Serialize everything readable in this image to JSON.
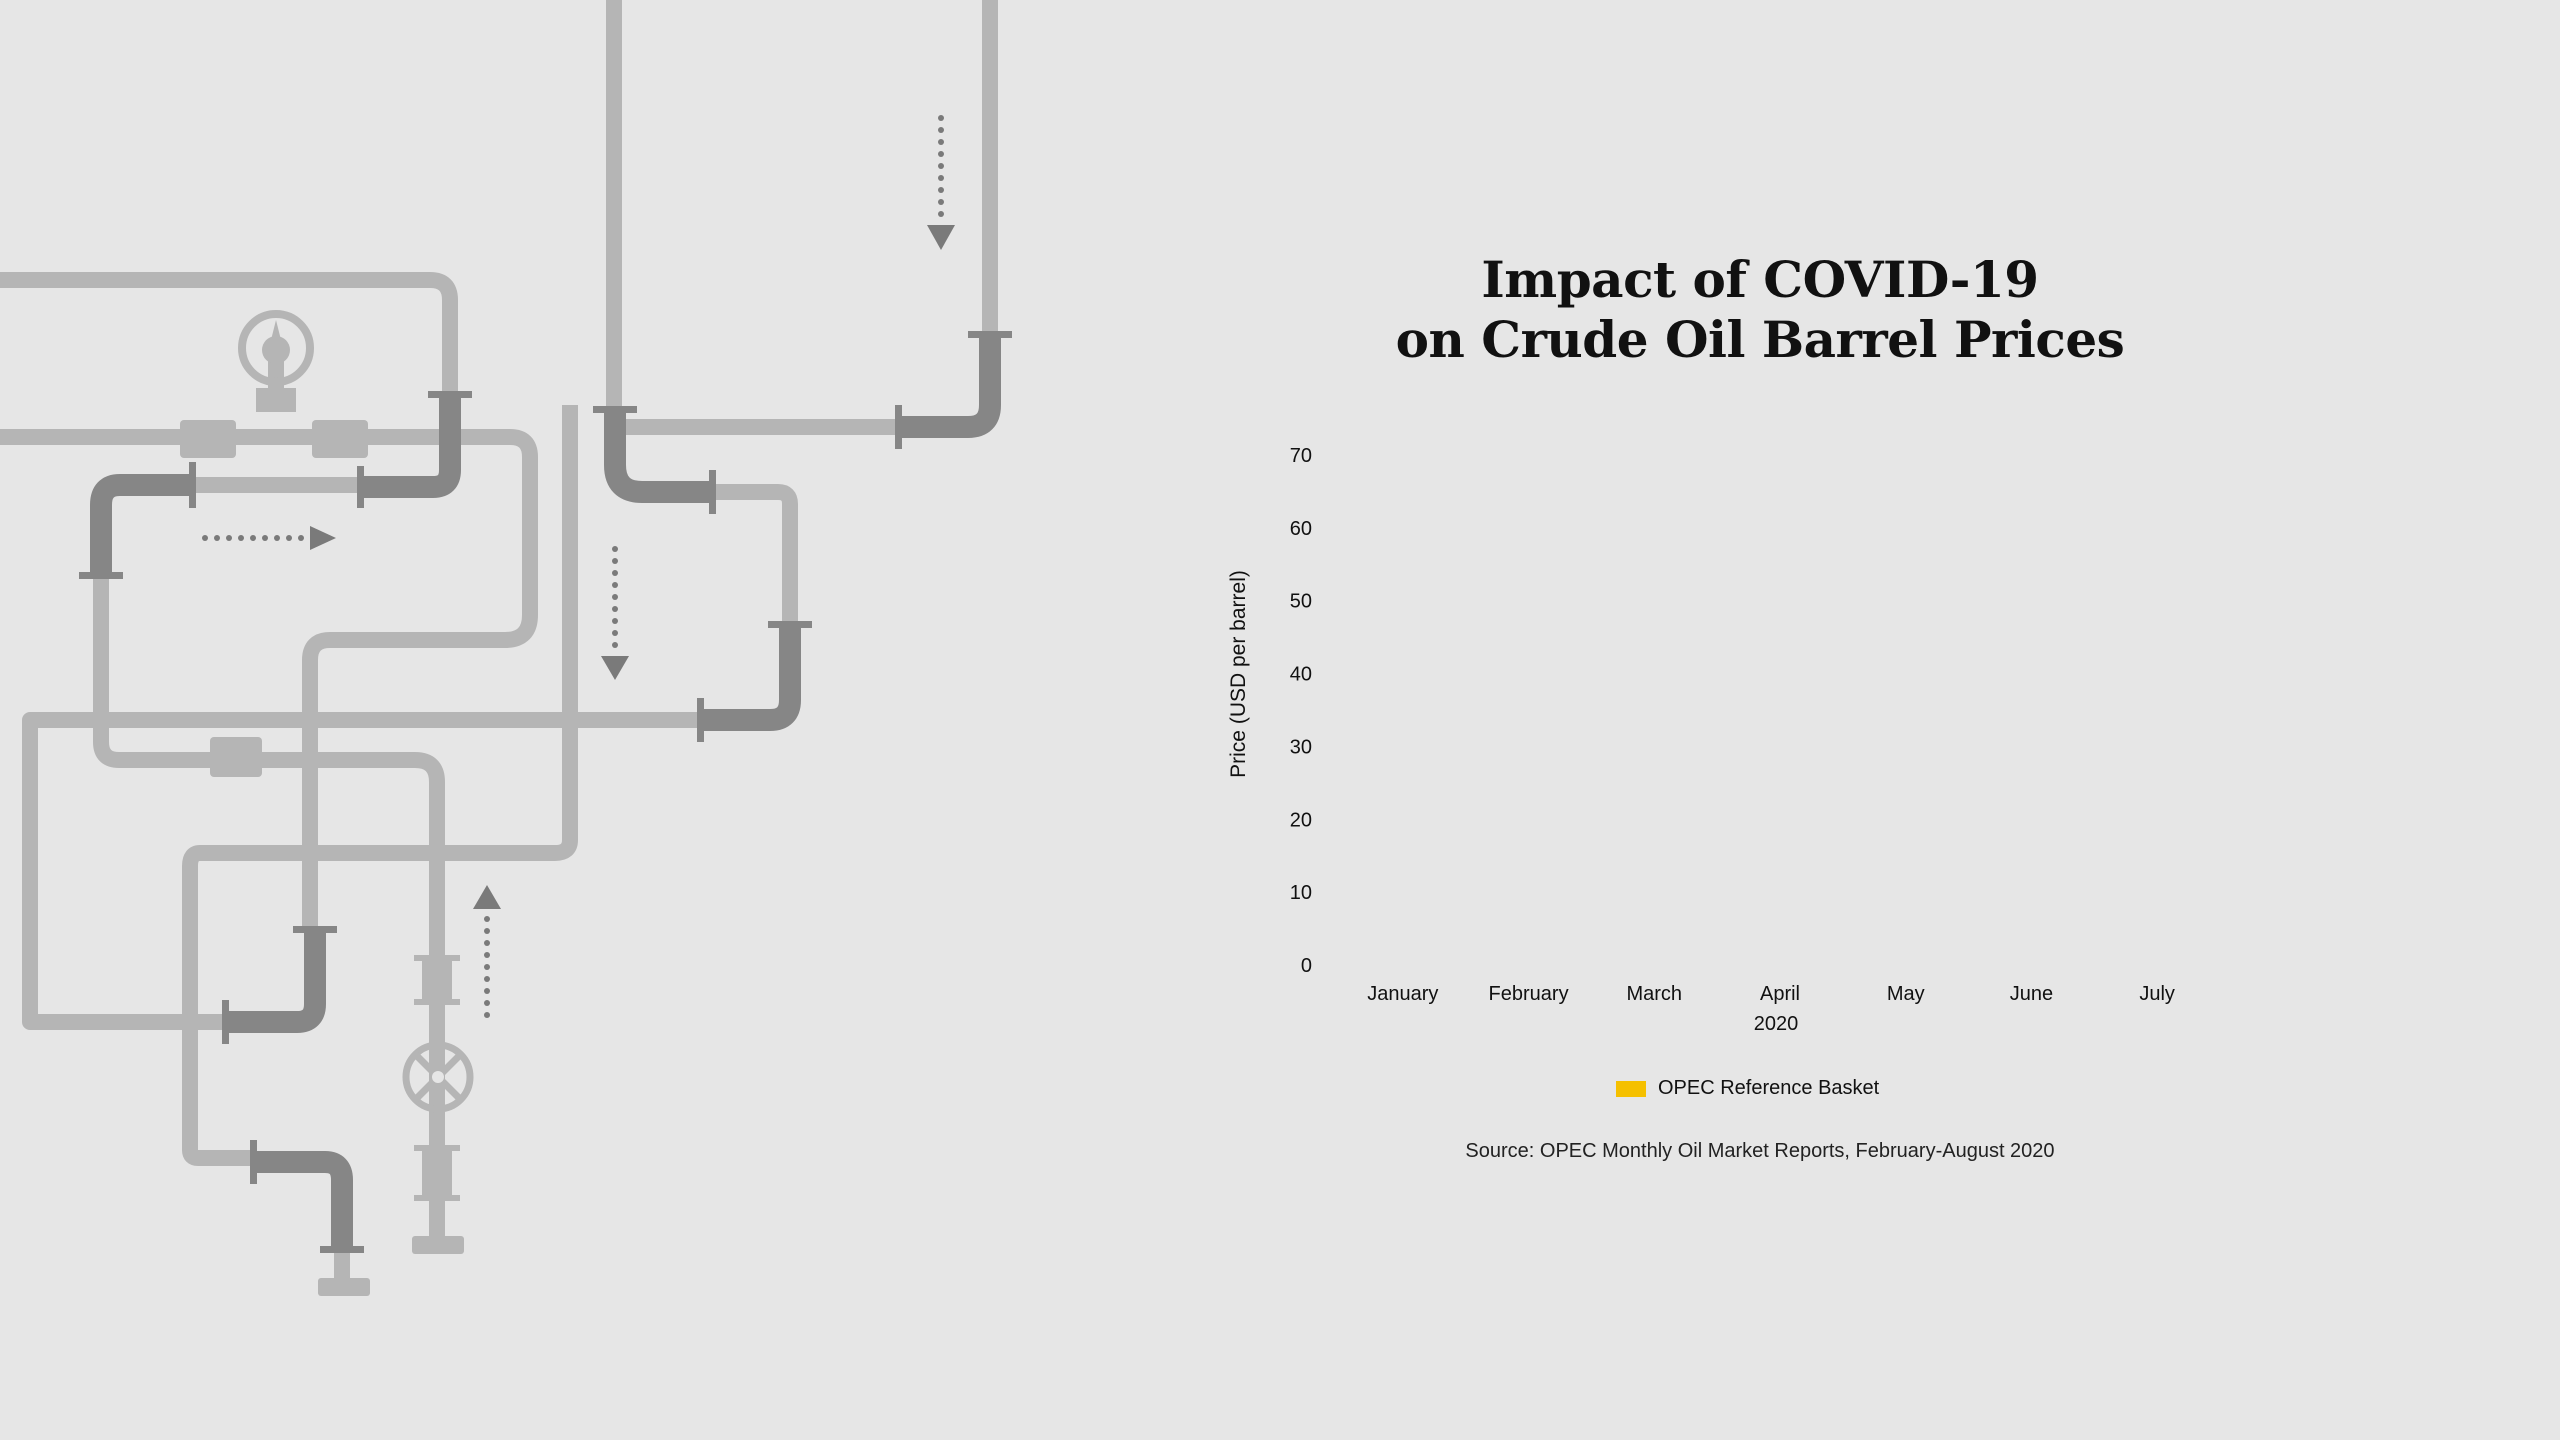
{
  "title_lines": [
    "Impact of COVID-19",
    "on Crude Oil Barrel Prices"
  ],
  "source": "Source: OPEC Monthly Oil Market Reports, February-August 2020",
  "colors": {
    "background": "#e6e6e6",
    "series": "#f5c000",
    "pipe_light": "#b5b5b5",
    "pipe_dark": "#868686"
  },
  "chart_data": {
    "type": "bar",
    "title": "Impact of COVID-19 on Crude Oil Barrel Prices",
    "categories": [
      "January",
      "February",
      "March",
      "April",
      "May",
      "June",
      "July"
    ],
    "x_group_label": "2020",
    "ylabel": "Price (USD per barrel)",
    "ylim": [
      0,
      70
    ],
    "yticks": [
      0,
      10,
      20,
      30,
      40,
      50,
      60,
      70
    ],
    "grid": false,
    "legend_position": "bottom",
    "series": [
      {
        "name": "OPEC Reference Basket",
        "values": [
          null,
          null,
          null,
          null,
          null,
          null,
          null
        ]
      }
    ]
  }
}
